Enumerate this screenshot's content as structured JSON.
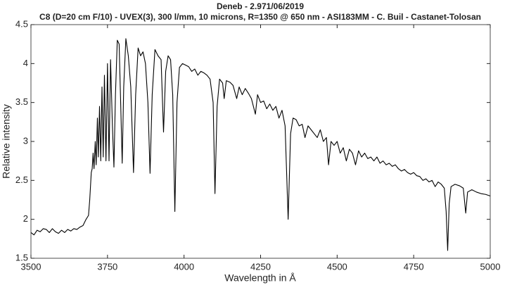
{
  "chart_data": {
    "type": "line",
    "title": "Deneb - 2.971/06/2019",
    "subtitle": "C8 (D=20 cm F/10) - UVEX(3), 300 l/mm, 10 microns, R=1350 @ 650 nm - ASI183MM - C. Buil - Castanet-Tolosan",
    "xlabel": "Wavelength in Å",
    "ylabel": "Relative intensity",
    "xlim": [
      3500,
      5000
    ],
    "xticks": [
      3500,
      3750,
      4000,
      4250,
      4500,
      4750,
      5000
    ],
    "ylim": [
      1.5,
      4.5
    ],
    "yticks": [
      1.5,
      2,
      2.5,
      3,
      3.5,
      4,
      4.5
    ],
    "x": [
      3500,
      3510,
      3520,
      3530,
      3540,
      3550,
      3560,
      3570,
      3580,
      3590,
      3600,
      3610,
      3620,
      3630,
      3640,
      3650,
      3660,
      3670,
      3680,
      3688,
      3692,
      3697,
      3700,
      3703,
      3706,
      3710,
      3713,
      3717,
      3720,
      3724,
      3728,
      3732,
      3736,
      3740,
      3745,
      3750,
      3755,
      3760,
      3766,
      3771,
      3776,
      3782,
      3788,
      3793,
      3798,
      3803,
      3810,
      3818,
      3826,
      3835,
      3842,
      3850,
      3858,
      3866,
      3874,
      3882,
      3889,
      3896,
      3905,
      3915,
      3925,
      3933,
      3940,
      3948,
      3956,
      3963,
      3970,
      3977,
      3985,
      3995,
      4005,
      4015,
      4025,
      4035,
      4045,
      4055,
      4065,
      4075,
      4085,
      4095,
      4101,
      4108,
      4116,
      4126,
      4131,
      4138,
      4150,
      4160,
      4172,
      4180,
      4190,
      4200,
      4210,
      4220,
      4233,
      4240,
      4250,
      4260,
      4270,
      4280,
      4290,
      4300,
      4310,
      4320,
      4330,
      4340,
      4348,
      4356,
      4366,
      4376,
      4386,
      4395,
      4405,
      4415,
      4425,
      4435,
      4445,
      4455,
      4465,
      4472,
      4480,
      4490,
      4500,
      4510,
      4520,
      4530,
      4540,
      4550,
      4560,
      4570,
      4580,
      4590,
      4600,
      4610,
      4620,
      4630,
      4640,
      4650,
      4660,
      4670,
      4680,
      4690,
      4700,
      4710,
      4720,
      4730,
      4740,
      4750,
      4760,
      4770,
      4780,
      4790,
      4800,
      4810,
      4820,
      4830,
      4840,
      4850,
      4856,
      4861,
      4866,
      4872,
      4885,
      4900,
      4912,
      4920,
      4926,
      4940,
      4955,
      4970,
      4985,
      5000
    ],
    "series": [
      {
        "color": "#000000",
        "values": [
          1.83,
          1.8,
          1.86,
          1.84,
          1.88,
          1.87,
          1.83,
          1.88,
          1.84,
          1.82,
          1.86,
          1.83,
          1.87,
          1.85,
          1.88,
          1.87,
          1.9,
          1.92,
          2.0,
          2.05,
          2.25,
          2.6,
          2.65,
          2.85,
          2.65,
          3.0,
          2.7,
          3.3,
          2.8,
          3.45,
          2.75,
          3.7,
          2.8,
          3.85,
          2.75,
          4.0,
          2.75,
          4.05,
          3.2,
          2.67,
          3.6,
          4.3,
          4.25,
          3.5,
          2.72,
          3.7,
          4.32,
          4.1,
          3.7,
          2.6,
          3.6,
          4.2,
          4.1,
          4.15,
          4.0,
          3.5,
          2.59,
          3.6,
          4.18,
          4.1,
          4.05,
          3.12,
          3.9,
          4.1,
          4.05,
          3.6,
          2.1,
          3.5,
          3.95,
          4.0,
          3.98,
          3.96,
          3.9,
          3.93,
          3.85,
          3.9,
          3.88,
          3.85,
          3.8,
          3.5,
          2.33,
          3.45,
          3.8,
          3.75,
          3.55,
          3.78,
          3.76,
          3.72,
          3.55,
          3.7,
          3.6,
          3.68,
          3.62,
          3.55,
          3.35,
          3.6,
          3.5,
          3.52,
          3.42,
          3.48,
          3.4,
          3.45,
          3.3,
          3.4,
          3.2,
          2.0,
          3.1,
          3.3,
          3.28,
          3.2,
          3.22,
          3.05,
          3.2,
          3.15,
          3.1,
          3.05,
          3.15,
          3.0,
          3.05,
          2.7,
          3.0,
          2.95,
          3.0,
          2.85,
          2.92,
          2.75,
          2.9,
          2.85,
          2.7,
          2.88,
          2.8,
          2.85,
          2.78,
          2.8,
          2.75,
          2.8,
          2.72,
          2.75,
          2.7,
          2.72,
          2.68,
          2.7,
          2.65,
          2.62,
          2.64,
          2.6,
          2.58,
          2.6,
          2.56,
          2.55,
          2.5,
          2.52,
          2.48,
          2.5,
          2.42,
          2.48,
          2.45,
          2.4,
          2.1,
          1.6,
          2.2,
          2.42,
          2.45,
          2.43,
          2.4,
          2.08,
          2.35,
          2.38,
          2.35,
          2.33,
          2.32,
          2.3
        ]
      }
    ]
  }
}
